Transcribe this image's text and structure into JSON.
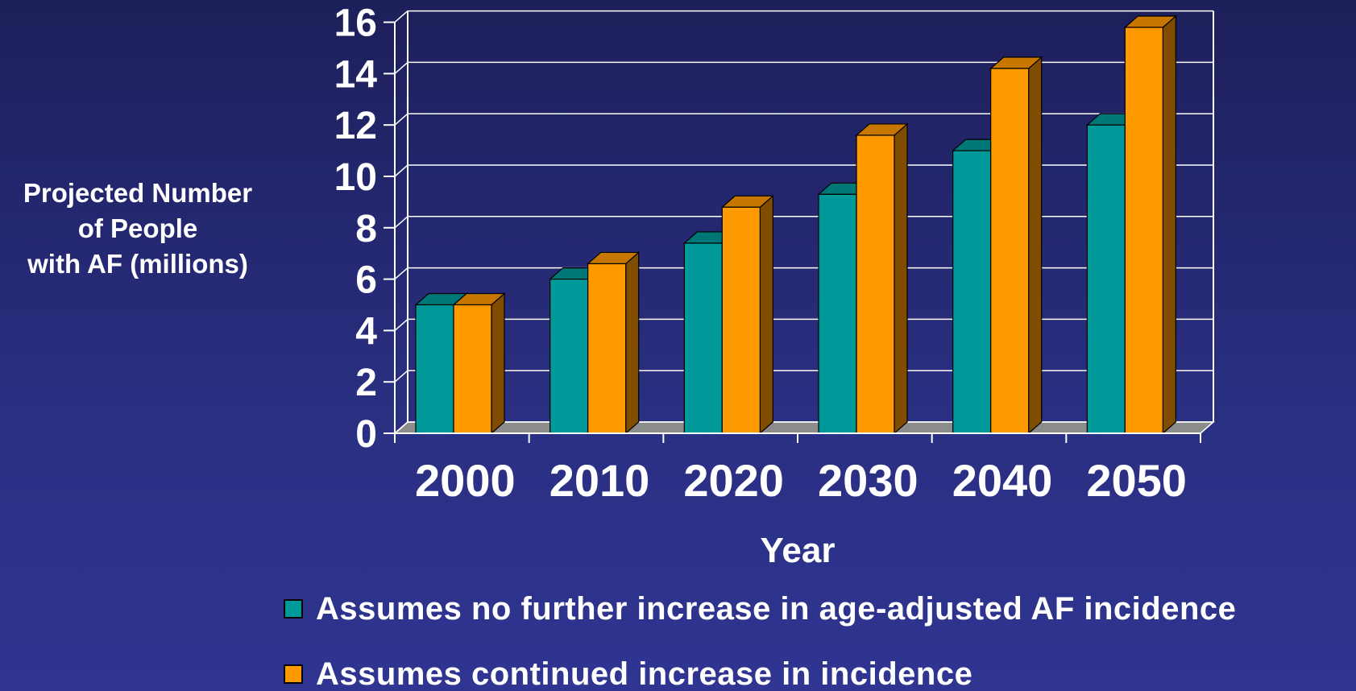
{
  "chart_data": {
    "type": "bar",
    "categories": [
      "2000",
      "2010",
      "2020",
      "2030",
      "2040",
      "2050"
    ],
    "series": [
      {
        "name": "Assumes no further increase in age-adjusted AF incidence",
        "color": "#009999",
        "values": [
          5.0,
          6.0,
          7.4,
          9.3,
          11.0,
          12.0
        ]
      },
      {
        "name": "Assumes continued increase in incidence",
        "color": "#ff9900",
        "values": [
          5.0,
          6.6,
          8.8,
          11.6,
          14.2,
          15.8
        ]
      }
    ],
    "ylabel": "Projected Number\nof People\nwith AF (millions)",
    "xlabel": "Year",
    "ylim": [
      0,
      16
    ],
    "yticks": [
      "0",
      "2",
      "4",
      "6",
      "8",
      "10",
      "12",
      "14",
      "16"
    ],
    "grid": true,
    "legend_position": "bottom",
    "style": "3d-clustered-bar"
  }
}
